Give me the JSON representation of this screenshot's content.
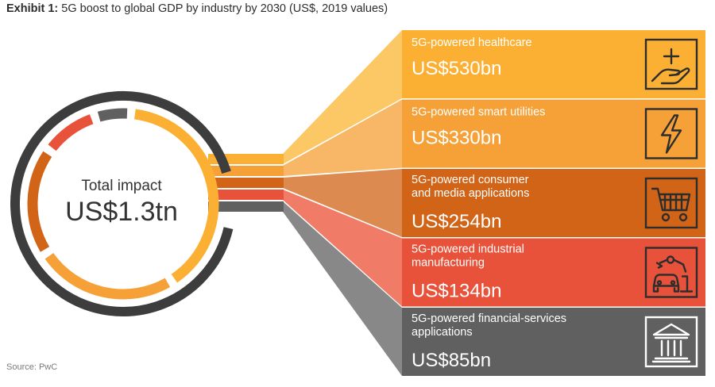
{
  "header": {
    "exhibit_label": "Exhibit 1:",
    "title": "5G boost to global GDP by industry by 2030 (US$, 2019 values)"
  },
  "source": "Source: PwC",
  "chart_data": {
    "type": "pie",
    "title": "5G boost to global GDP by industry by 2030 (US$, 2019 values)",
    "center_label": "Total impact",
    "center_value": "US$1.3tn",
    "unit": "US$bn",
    "segments": [
      {
        "name": "5G-powered healthcare",
        "label_lines": [
          "5G-powered healthcare"
        ],
        "value": 530,
        "value_label": "US$530bn",
        "color": "#fbb034",
        "fan_color": "#fcc865",
        "icon": "healthcare-hand-icon"
      },
      {
        "name": "5G-powered smart utilities",
        "label_lines": [
          "5G-powered smart utilities"
        ],
        "value": 330,
        "value_label": "US$330bn",
        "color": "#f5a138",
        "fan_color": "#f8b667",
        "icon": "lightning-bolt-icon"
      },
      {
        "name": "5G-powered consumer and media applications",
        "label_lines": [
          "5G-powered consumer",
          "and media applications"
        ],
        "value": 254,
        "value_label": "US$254bn",
        "color": "#d16417",
        "fan_color": "#dc8a4f",
        "icon": "shopping-cart-icon"
      },
      {
        "name": "5G-powered industrial manufacturing",
        "label_lines": [
          "5G-powered industrial",
          "manufacturing"
        ],
        "value": 134,
        "value_label": "US$134bn",
        "color": "#e8523a",
        "fan_color": "#f07b66",
        "icon": "robot-arm-car-icon"
      },
      {
        "name": "5G-powered financial-services applications",
        "label_lines": [
          "5G-powered financial-services",
          "applications"
        ],
        "value": 85,
        "value_label": "US$85bn",
        "color": "#606060",
        "fan_color": "#888888",
        "icon": "bank-building-icon"
      }
    ],
    "outer_ring_color": "#3d3d3d"
  }
}
